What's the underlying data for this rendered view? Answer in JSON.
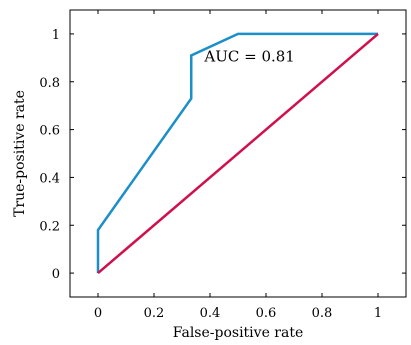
{
  "chart_data": {
    "type": "line",
    "title": "",
    "xlabel": "False-positive rate",
    "ylabel": "True-positive rate",
    "xlim": [
      -0.1,
      1.1
    ],
    "ylim": [
      -0.1,
      1.1
    ],
    "xticks": [
      0,
      0.2,
      0.4,
      0.6,
      0.8,
      1
    ],
    "yticks": [
      0,
      0.2,
      0.4,
      0.6,
      0.8,
      1
    ],
    "xtick_labels": [
      "0",
      "0.2",
      "0.4",
      "0.6",
      "0.8",
      "1"
    ],
    "ytick_labels": [
      "0",
      "0.2",
      "0.4",
      "0.6",
      "0.8",
      "1"
    ],
    "grid": false,
    "annotations": [
      {
        "text": "AUC = 0.81",
        "x": 0.38,
        "y": 0.91
      }
    ],
    "series": [
      {
        "color": "#1b8fc9",
        "x": [
          0,
          0,
          0.333,
          0.333,
          0.5,
          1
        ],
        "y": [
          0,
          0.18,
          0.73,
          0.91,
          1.0,
          1.0
        ]
      },
      {
        "color": "#d0104c",
        "x": [
          0,
          1
        ],
        "y": [
          0,
          1
        ]
      }
    ]
  }
}
